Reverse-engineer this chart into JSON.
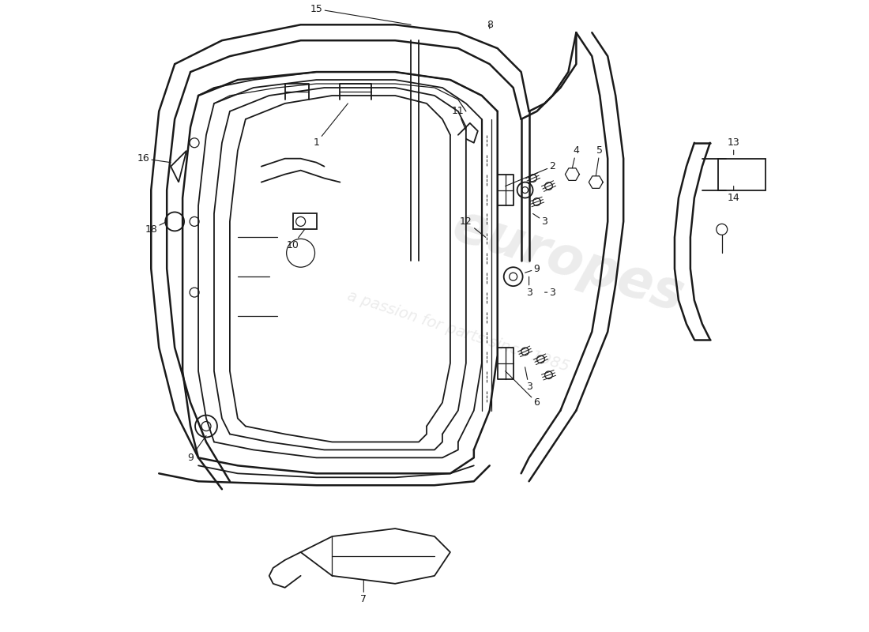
{
  "bg_color": "#ffffff",
  "line_color": "#1a1a1a",
  "lw_main": 1.8,
  "lw_med": 1.3,
  "lw_thin": 0.9,
  "wm_color": "#d0d0d0",
  "wm_alpha": 0.4
}
